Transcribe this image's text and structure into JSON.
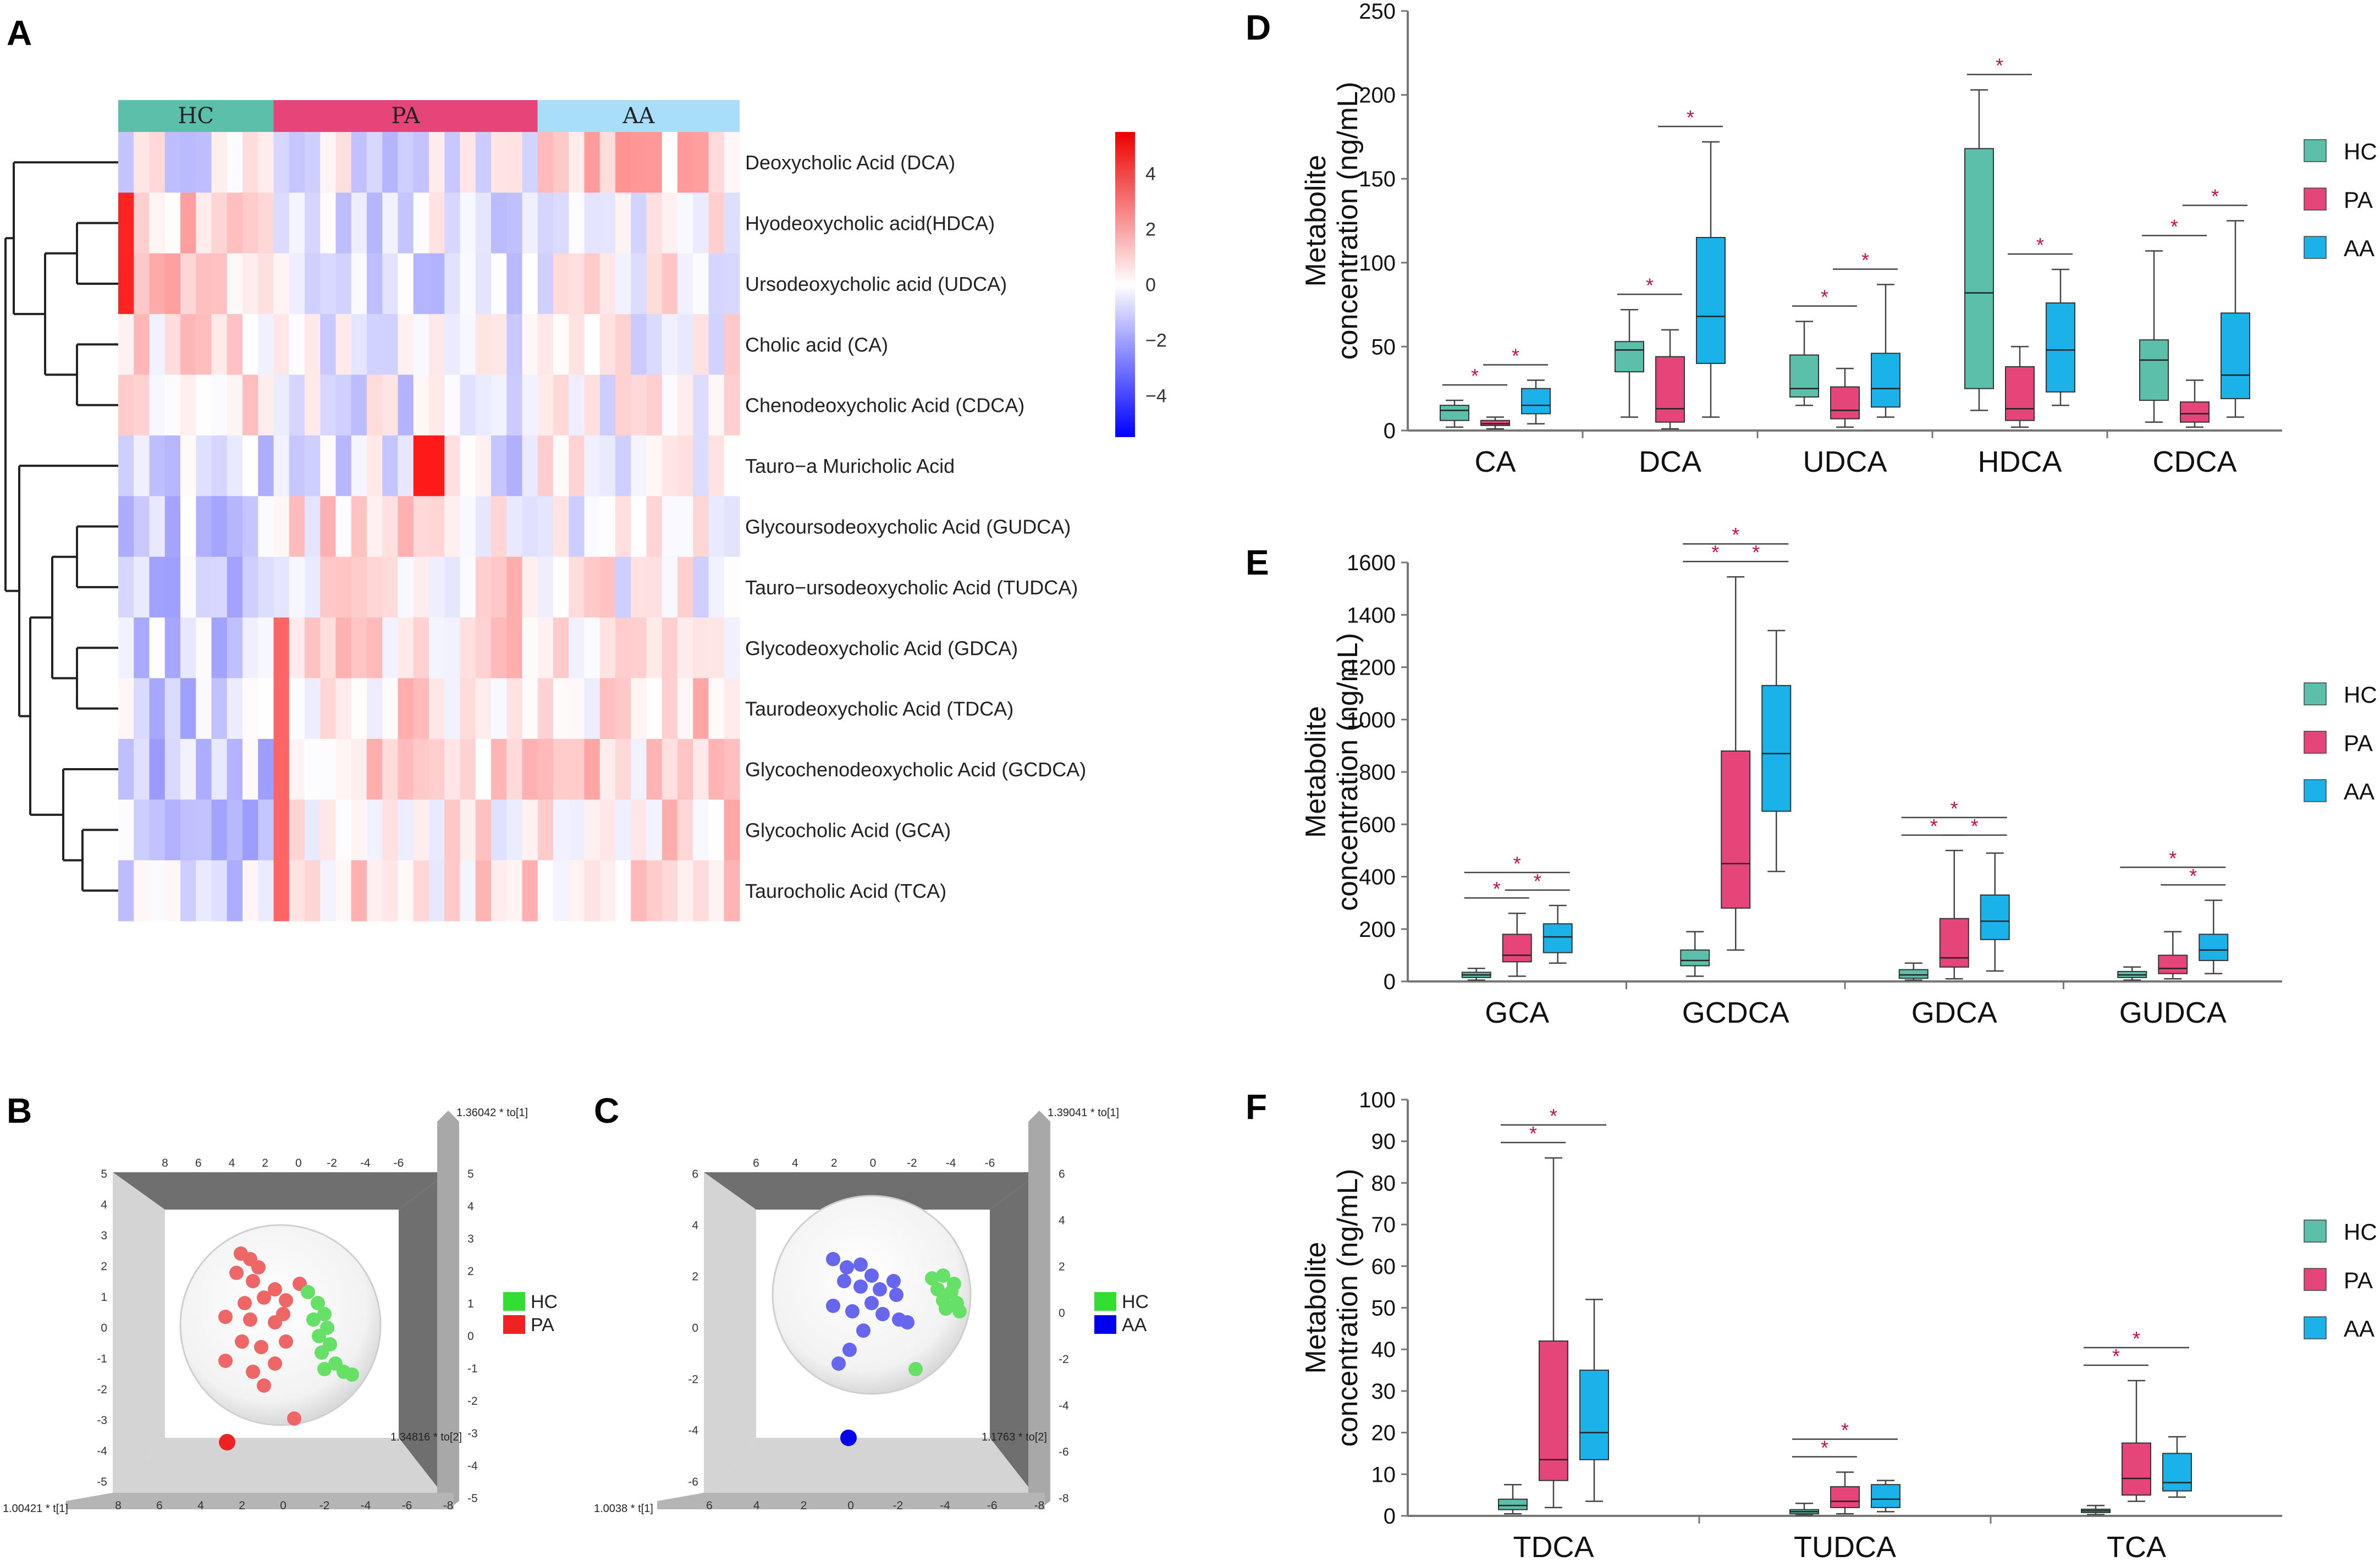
{
  "panels": {
    "A": "A",
    "B": "B",
    "C": "C",
    "D": "D",
    "E": "E",
    "F": "F"
  },
  "colors": {
    "HC": "#5bbfa9",
    "PA": "#e6457a",
    "AA": "#1ab2e8",
    "sig": "#c0143c",
    "heat_low": "#0000ff",
    "heat_mid": "#ffffff",
    "heat_high": "#ee0000",
    "pca_green": "#33dd33",
    "pca_red": "#ee2222",
    "pca_blue": "#0000ee"
  },
  "heatmap": {
    "groups": [
      {
        "label": "HC",
        "color": "#5bbfa9"
      },
      {
        "label": "PA",
        "color": "#e6457a"
      },
      {
        "label": "AA",
        "color": "#a9defb"
      }
    ],
    "group_sizes": [
      10,
      17,
      13
    ],
    "rows": [
      "Deoxycholic Acid (DCA)",
      "Hyodeoxycholic acid(HDCA)",
      "Ursodeoxycholic acid (UDCA)",
      "Cholic acid (CA)",
      "Chenodeoxycholic Acid (CDCA)",
      "Tauro−a Muricholic Acid",
      "Glycoursodeoxycholic Acid (GUDCA)",
      "Tauro−ursodeoxycholic Acid (TUDCA)",
      "Glycodeoxycholic Acid (GDCA)",
      "Taurodeoxycholic Acid (TDCA)",
      "Glycochenodeoxycholic Acid (GCDCA)",
      "Glycocholic Acid (GCA)",
      "Taurocholic Acid (TCA)"
    ],
    "scale": {
      "ticks": [
        4,
        2,
        0,
        -2,
        -4
      ],
      "tick_labels": [
        "4",
        "2",
        "0",
        "−2",
        "−4"
      ],
      "min": -5.5,
      "max": 5.5
    }
  },
  "pca": [
    {
      "id": "B",
      "y_axis_label": "1.36042 * to[1]",
      "z_axis_label": "1.34816 * to[2]",
      "x_axis_label": "1.00421 * t[1]",
      "top_ticks": [
        "8",
        "6",
        "4",
        "2",
        "0",
        "-2",
        "-4",
        "-6"
      ],
      "left_ticks": [
        "5",
        "4",
        "3",
        "2",
        "1",
        "0",
        "-1",
        "-2",
        "-3",
        "-4",
        "-5"
      ],
      "right_ticks": [
        "5",
        "4",
        "3",
        "2",
        "1",
        "0",
        "-1",
        "-2",
        "-3",
        "-4",
        "-5"
      ],
      "bottom_ticks": [
        "8",
        "6",
        "4",
        "2",
        "0",
        "-2",
        "-4",
        "-6",
        "-8"
      ],
      "legend": [
        {
          "label": "HC",
          "color": "#33dd33"
        },
        {
          "label": "PA",
          "color": "#ee2222"
        }
      ]
    },
    {
      "id": "C",
      "y_axis_label": "1.39041 * to[1]",
      "z_axis_label": "1.1763 * to[2]",
      "x_axis_label": "1.0038 * t[1]",
      "top_ticks": [
        "6",
        "4",
        "2",
        "0",
        "-2",
        "-4",
        "-6"
      ],
      "left_ticks": [
        "6",
        "4",
        "2",
        "0",
        "-2",
        "-4",
        "-6"
      ],
      "right_ticks": [
        "6",
        "4",
        "2",
        "0",
        "-2",
        "-4",
        "-6",
        "-8"
      ],
      "bottom_ticks": [
        "6",
        "4",
        "2",
        "0",
        "-2",
        "-4",
        "-6",
        "-8"
      ],
      "legend": [
        {
          "label": "HC",
          "color": "#33dd33"
        },
        {
          "label": "AA",
          "color": "#0000ee"
        }
      ]
    }
  ],
  "chart_data": [
    {
      "type": "box",
      "id": "D",
      "ylabel": "Metabolite concentration (ng/mL)",
      "ylim": [
        0,
        250
      ],
      "yticks": [
        0,
        50,
        100,
        150,
        200,
        250
      ],
      "legend": [
        "HC",
        "PA",
        "AA"
      ],
      "categories": [
        "CA",
        "DCA",
        "UDCA",
        "HDCA",
        "CDCA"
      ],
      "series": [
        {
          "name": "HC",
          "boxes": [
            [
              2,
              6,
              12,
              15,
              18
            ],
            [
              8,
              35,
              48,
              53,
              72
            ],
            [
              15,
              20,
              25,
              45,
              65
            ],
            [
              12,
              25,
              82,
              168,
              203
            ],
            [
              5,
              18,
              42,
              54,
              107
            ]
          ]
        },
        {
          "name": "PA",
          "boxes": [
            [
              1,
              3,
              4,
              6,
              8
            ],
            [
              1,
              5,
              13,
              44,
              60
            ],
            [
              2,
              7,
              12,
              26,
              37
            ],
            [
              2,
              6,
              13,
              38,
              50
            ],
            [
              2,
              5,
              10,
              17,
              30
            ]
          ]
        },
        {
          "name": "AA",
          "boxes": [
            [
              4,
              10,
              15,
              25,
              30
            ],
            [
              8,
              40,
              68,
              115,
              172
            ],
            [
              8,
              14,
              25,
              46,
              87
            ],
            [
              15,
              23,
              48,
              76,
              96
            ],
            [
              8,
              19,
              33,
              70,
              125
            ]
          ]
        }
      ],
      "significance": [
        {
          "category": "CA",
          "pairs": [
            "HC-PA",
            "PA-AA"
          ]
        },
        {
          "category": "DCA",
          "pairs": [
            "HC-PA",
            "PA-AA"
          ]
        },
        {
          "category": "UDCA",
          "pairs": [
            "HC-PA",
            "PA-AA"
          ]
        },
        {
          "category": "HDCA",
          "pairs": [
            "HC-PA",
            "PA-AA"
          ]
        },
        {
          "category": "CDCA",
          "pairs": [
            "HC-PA",
            "PA-AA"
          ]
        }
      ],
      "sig_label": "*"
    },
    {
      "type": "box",
      "id": "E",
      "ylabel": "Metabolite concentration (ng/mL)",
      "ylim": [
        0,
        1600
      ],
      "yticks": [
        0,
        200,
        400,
        600,
        800,
        1000,
        1200,
        1400,
        1600
      ],
      "legend": [
        "HC",
        "PA",
        "AA"
      ],
      "categories": [
        "GCA",
        "GCDCA",
        "GDCA",
        "GUDCA"
      ],
      "series": [
        {
          "name": "HC",
          "boxes": [
            [
              5,
              15,
              25,
              35,
              50
            ],
            [
              20,
              60,
              80,
              120,
              190
            ],
            [
              5,
              12,
              25,
              45,
              70
            ],
            [
              5,
              15,
              25,
              38,
              55
            ]
          ]
        },
        {
          "name": "PA",
          "boxes": [
            [
              20,
              75,
              100,
              180,
              260
            ],
            [
              120,
              280,
              450,
              880,
              1545
            ],
            [
              10,
              55,
              90,
              240,
              500
            ],
            [
              10,
              30,
              50,
              100,
              190
            ]
          ]
        },
        {
          "name": "AA",
          "boxes": [
            [
              70,
              110,
              170,
              220,
              290
            ],
            [
              420,
              650,
              870,
              1130,
              1340
            ],
            [
              40,
              160,
              230,
              330,
              490
            ],
            [
              30,
              80,
              120,
              180,
              310
            ]
          ]
        }
      ],
      "significance": [
        {
          "category": "GCA",
          "pairs": [
            "HC-PA",
            "PA-AA",
            "HC-AA"
          ]
        },
        {
          "category": "GCDCA",
          "pairs": [
            "HC-PA",
            "PA-AA",
            "HC-AA"
          ]
        },
        {
          "category": "GDCA",
          "pairs": [
            "HC-PA",
            "PA-AA",
            "HC-AA"
          ]
        },
        {
          "category": "GUDCA",
          "pairs": [
            "PA-AA",
            "HC-AA"
          ]
        }
      ],
      "sig_label": "*"
    },
    {
      "type": "box",
      "id": "F",
      "ylabel": "Metabolite concentration (ng/mL)",
      "ylim": [
        0,
        100
      ],
      "yticks": [
        0,
        10,
        20,
        30,
        40,
        50,
        60,
        70,
        80,
        90,
        100
      ],
      "legend": [
        "HC",
        "PA",
        "AA"
      ],
      "categories": [
        "TDCA",
        "TUDCA",
        "TCA"
      ],
      "series": [
        {
          "name": "HC",
          "boxes": [
            [
              0.5,
              1.5,
              2.5,
              4,
              7.5
            ],
            [
              0.2,
              0.5,
              1,
              1.5,
              3
            ],
            [
              0.3,
              0.8,
              1.2,
              1.6,
              2.5
            ]
          ]
        },
        {
          "name": "PA",
          "boxes": [
            [
              2,
              8.5,
              13.5,
              42,
              86
            ],
            [
              0.5,
              2,
              3.5,
              7,
              10.5
            ],
            [
              3.5,
              5,
              9,
              17.5,
              32.5
            ]
          ]
        },
        {
          "name": "AA",
          "boxes": [
            [
              3.5,
              13.5,
              20,
              35,
              52
            ],
            [
              1,
              2,
              4,
              7.5,
              8.5
            ],
            [
              4.5,
              6,
              8,
              15,
              19
            ]
          ]
        }
      ],
      "significance": [
        {
          "category": "TDCA",
          "pairs": [
            "HC-PA",
            "HC-AA"
          ]
        },
        {
          "category": "TUDCA",
          "pairs": [
            "HC-PA",
            "HC-AA"
          ]
        },
        {
          "category": "TCA",
          "pairs": [
            "HC-PA",
            "HC-AA"
          ]
        }
      ],
      "sig_label": "*"
    }
  ]
}
